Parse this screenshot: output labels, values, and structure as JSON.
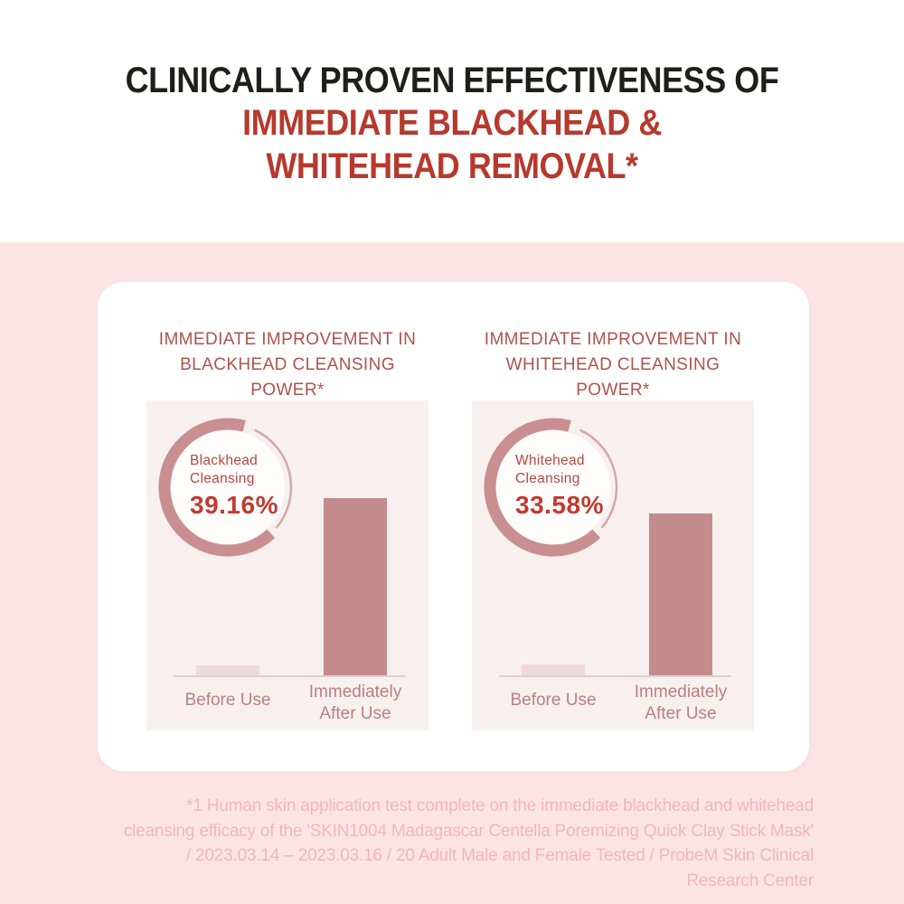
{
  "header": {
    "line1": "CLINICALLY PROVEN EFFECTIVENESS OF",
    "line2": "IMMEDIATE BLACKHEAD &",
    "line3": "WHITEHEAD REMOVAL*"
  },
  "colors": {
    "page_pink": "#fce4e4",
    "headline_black": "#1e1e1c",
    "headline_red": "#b6392e",
    "panel_title_red": "#b0524b",
    "panel_bg": "#f7f0ef",
    "donut_thick_arc": "#c98f90",
    "donut_thin_arc": "#d6a7a7",
    "percent_red": "#c23a2f",
    "bar_after": "#c48b8d",
    "bar_before": "#eed9dc",
    "bar_label": "#b97f84",
    "footnote_pink": "#f2b6bb"
  },
  "chart_data": [
    {
      "type": "bar",
      "title": "IMMEDIATE IMPROVEMENT IN BLACKHEAD CLEANSING POWER*",
      "title_lines": [
        "IMMEDIATE IMPROVEMENT IN",
        "BLACKHEAD CLEANSING POWER*"
      ],
      "donut": {
        "label_lines": [
          "Blackhead",
          "Cleansing"
        ],
        "percent_text": "39.16%",
        "percent_value": 39.16
      },
      "categories": [
        "Before Use",
        "Immediately After Use"
      ],
      "category_lines": [
        [
          "Before Use"
        ],
        [
          "Immediately",
          "After Use"
        ]
      ],
      "values": [
        2.2,
        39.16
      ],
      "ylim": [
        0,
        40
      ],
      "grid": false,
      "legend": false
    },
    {
      "type": "bar",
      "title": "IMMEDIATE IMPROVEMENT IN WHITEHEAD CLEANSING POWER*",
      "title_lines": [
        "IMMEDIATE IMPROVEMENT IN",
        "WHITEHEAD CLEANSING POWER*"
      ],
      "donut": {
        "label_lines": [
          "Whitehead",
          "Cleansing"
        ],
        "percent_text": "33.58%",
        "percent_value": 33.58
      },
      "categories": [
        "Before Use",
        "Immediately After Use"
      ],
      "category_lines": [
        [
          "Before Use"
        ],
        [
          "Immediately",
          "After Use"
        ]
      ],
      "values": [
        2.2,
        33.58
      ],
      "ylim": [
        0,
        37.5
      ],
      "grid": false,
      "legend": false
    }
  ],
  "footnote": {
    "lines": [
      "*1 Human skin application test complete on the immediate blackhead and whitehead",
      "cleansing efficacy of the 'SKIN1004 Madagascar Centella Poremizing Quick Clay Stick Mask'",
      "/ 2023.03.14 – 2023.03.16 / 20 Adult Male and Female Tested / ProbeM Skin Clinical",
      "Research Center"
    ]
  }
}
